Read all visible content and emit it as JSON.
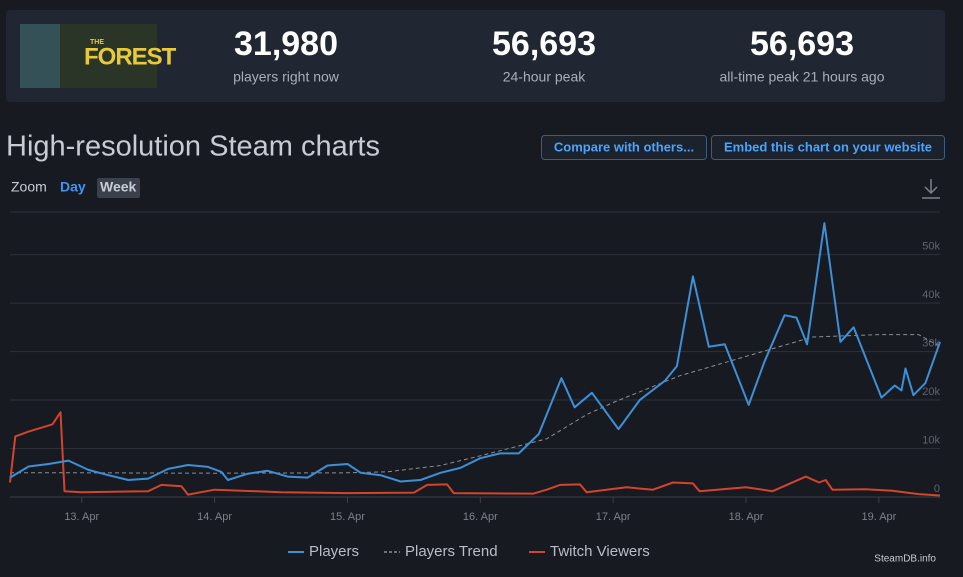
{
  "header": {
    "logo_text": [
      "THE",
      "FOREST"
    ],
    "stats": [
      {
        "value": "31,980",
        "label": "players right now"
      },
      {
        "value": "56,693",
        "label": "24-hour peak"
      },
      {
        "value": "56,693",
        "label": "all-time peak 21 hours ago"
      }
    ]
  },
  "toolbar": {
    "title": "High-resolution Steam charts",
    "buttons": [
      "Compare with others...",
      "Embed this chart on your website"
    ],
    "zoom_label": "Zoom",
    "zoom_options": [
      "Day",
      "Week"
    ]
  },
  "chart_data": {
    "type": "line",
    "xlim": [
      12.46,
      19.46
    ],
    "xticks": [
      {
        "value": 13,
        "label": "13. Apr"
      },
      {
        "value": 14,
        "label": "14. Apr"
      },
      {
        "value": 15,
        "label": "15. Apr"
      },
      {
        "value": 16,
        "label": "16. Apr"
      },
      {
        "value": 17,
        "label": "17. Apr"
      },
      {
        "value": 18,
        "label": "18. Apr"
      },
      {
        "value": 19,
        "label": "19. Apr"
      }
    ],
    "ylim": [
      0,
      59000
    ],
    "yticks": [
      0,
      {
        "value": 10000,
        "label": "10k"
      },
      {
        "value": 20000,
        "label": "20k"
      },
      {
        "value": 30000,
        "label": "30k"
      },
      {
        "value": 40000,
        "label": "40k"
      },
      {
        "value": 50000,
        "label": "50k"
      }
    ],
    "grid": true,
    "series": [
      {
        "name": "Players",
        "color": "#3d8fd6",
        "dash": false,
        "x": [
          12.46,
          12.6,
          12.75,
          12.9,
          13.05,
          13.2,
          13.35,
          13.5,
          13.65,
          13.8,
          13.95,
          14.05,
          14.1,
          14.25,
          14.4,
          14.55,
          14.7,
          14.85,
          15.0,
          15.1,
          15.25,
          15.4,
          15.55,
          15.7,
          15.85,
          16.0,
          16.15,
          16.29,
          16.44,
          16.61,
          16.71,
          16.84,
          17.04,
          17.2,
          17.39,
          17.48,
          17.6,
          17.72,
          17.84,
          18.02,
          18.14,
          18.29,
          18.38,
          18.46,
          18.59,
          18.71,
          18.81,
          19.02,
          19.12,
          19.17,
          19.2,
          19.26,
          19.35,
          19.46
        ],
        "values": [
          4000,
          6300,
          6800,
          7500,
          5600,
          4500,
          3500,
          3800,
          5800,
          6600,
          6200,
          5200,
          3500,
          4800,
          5400,
          4200,
          4000,
          6500,
          6800,
          5000,
          4500,
          3200,
          3500,
          5000,
          6000,
          8000,
          9000,
          9000,
          13000,
          24500,
          18500,
          21500,
          14000,
          20000,
          24000,
          27000,
          45500,
          31000,
          31500,
          19000,
          28000,
          37500,
          37000,
          31500,
          56500,
          32000,
          35000,
          20500,
          23000,
          22000,
          26500,
          21000,
          23500,
          32000
        ]
      },
      {
        "name": "Players Trend",
        "color": "#8a8f98",
        "dash": true,
        "x": [
          12.46,
          13.0,
          14.0,
          15.0,
          15.3,
          15.7,
          16.0,
          16.5,
          16.8,
          17.0,
          17.5,
          18.0,
          18.5,
          19.0,
          19.3,
          19.46
        ],
        "values": [
          5000,
          5000,
          4900,
          5000,
          5200,
          6500,
          8500,
          12000,
          17000,
          19500,
          25000,
          29000,
          33000,
          33500,
          33500,
          31000
        ]
      },
      {
        "name": "Twitch Viewers",
        "color": "#d2452b",
        "dash": false,
        "x": [
          12.46,
          12.5,
          12.6,
          12.78,
          12.84,
          12.87,
          13.0,
          13.5,
          13.6,
          13.75,
          13.8,
          14.0,
          14.5,
          15.0,
          15.5,
          15.6,
          15.75,
          15.8,
          16.4,
          16.5,
          16.6,
          16.75,
          16.8,
          17.1,
          17.3,
          17.45,
          17.6,
          17.65,
          18.0,
          18.2,
          18.45,
          18.55,
          18.6,
          18.65,
          18.9,
          19.1,
          19.3,
          19.46
        ],
        "values": [
          3000,
          12500,
          13500,
          15000,
          17500,
          1200,
          1000,
          1200,
          2500,
          2200,
          500,
          1500,
          1000,
          800,
          900,
          2500,
          2600,
          800,
          700,
          1500,
          2500,
          2600,
          1000,
          2000,
          1500,
          3000,
          2800,
          1200,
          2000,
          1200,
          4200,
          3000,
          3500,
          1500,
          1600,
          1300,
          600,
          300
        ]
      }
    ],
    "credit": "SteamDB.info"
  }
}
